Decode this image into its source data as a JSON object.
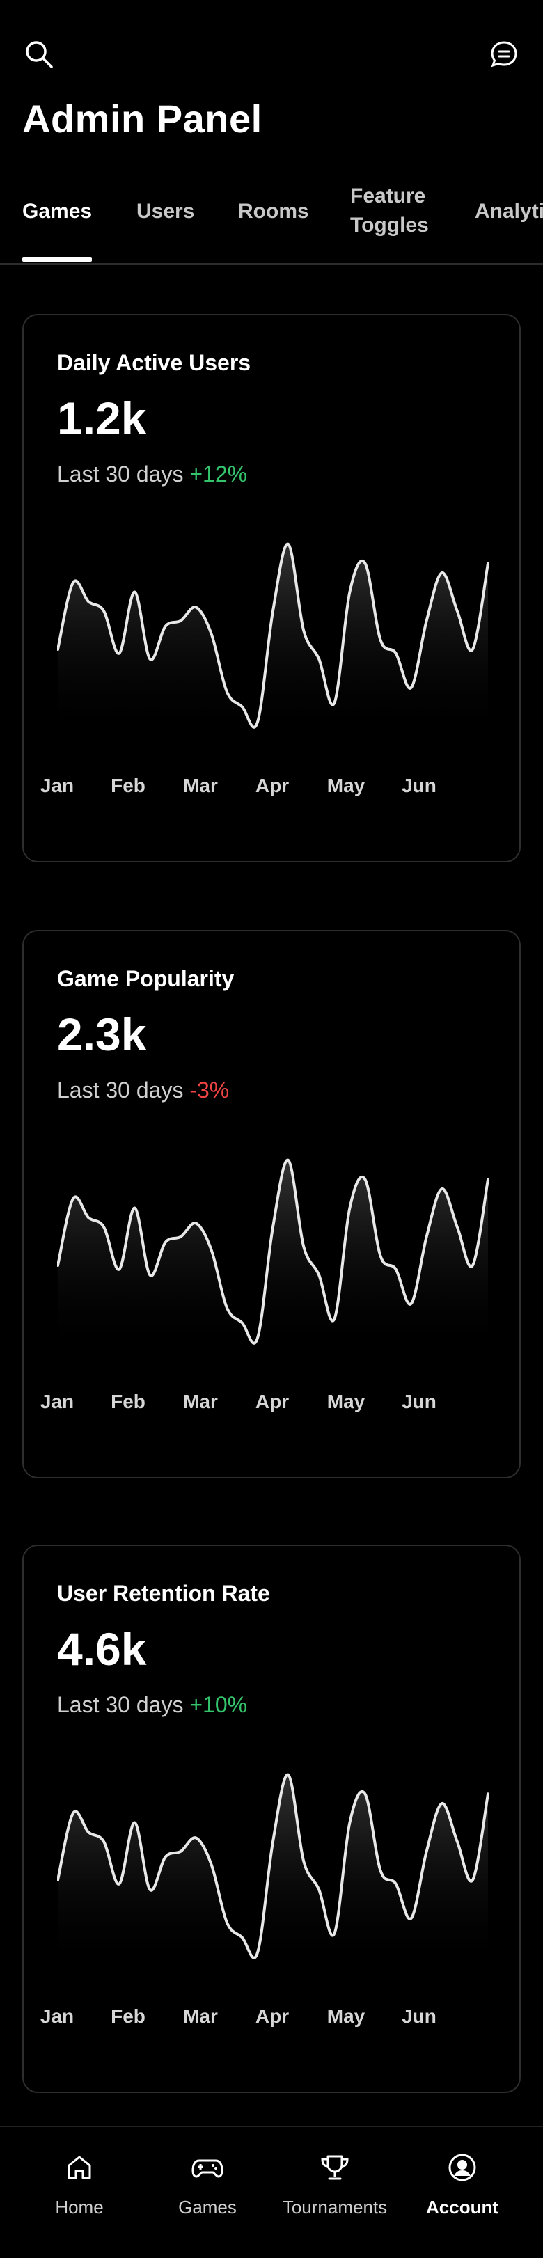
{
  "header": {
    "title": "Admin Panel",
    "search_icon": "search-icon",
    "chat_icon": "chat-icon"
  },
  "tabs": [
    {
      "label": "Games",
      "active": true
    },
    {
      "label": "Users",
      "active": false
    },
    {
      "label": "Rooms",
      "active": false
    },
    {
      "label": "Feature Toggles",
      "active": false
    },
    {
      "label": "Analytics",
      "active": false
    }
  ],
  "cards": [
    {
      "title": "Daily Active Users",
      "value": "1.2k",
      "period": "Last 30 days",
      "delta": "+12%",
      "delta_color": "#34c46b"
    },
    {
      "title": "Game Popularity",
      "value": "2.3k",
      "period": "Last 30 days",
      "delta": "-3%",
      "delta_color": "#ef4444"
    },
    {
      "title": "User Retention Rate",
      "value": "4.6k",
      "period": "Last 30 days",
      "delta": "+10%",
      "delta_color": "#34c46b"
    }
  ],
  "chart_data": [
    {
      "type": "area",
      "title": "Daily Active Users",
      "categories": [
        "Jan",
        "Feb",
        "Mar",
        "Apr",
        "May",
        "Jun"
      ],
      "x": [
        0,
        0.2,
        0.4,
        0.6,
        0.8,
        1.0,
        1.2,
        1.4,
        1.6,
        1.8,
        2.0,
        2.2,
        2.4,
        2.6,
        2.8,
        3.0,
        3.2,
        3.4,
        3.6,
        3.8,
        4.0,
        4.2,
        4.4,
        4.6,
        4.8,
        5.0,
        5.2,
        5.4,
        5.6
      ],
      "values": [
        40,
        75,
        65,
        60,
        38,
        70,
        35,
        52,
        55,
        62,
        48,
        18,
        10,
        2,
        60,
        95,
        50,
        35,
        12,
        70,
        85,
        45,
        38,
        20,
        55,
        80,
        60,
        40,
        85
      ],
      "grid": false
    },
    {
      "type": "area",
      "title": "Game Popularity",
      "categories": [
        "Jan",
        "Feb",
        "Mar",
        "Apr",
        "May",
        "Jun"
      ],
      "x": [
        0,
        0.2,
        0.4,
        0.6,
        0.8,
        1.0,
        1.2,
        1.4,
        1.6,
        1.8,
        2.0,
        2.2,
        2.4,
        2.6,
        2.8,
        3.0,
        3.2,
        3.4,
        3.6,
        3.8,
        4.0,
        4.2,
        4.4,
        4.6,
        4.8,
        5.0,
        5.2,
        5.4,
        5.6
      ],
      "values": [
        40,
        75,
        65,
        60,
        38,
        70,
        35,
        52,
        55,
        62,
        48,
        18,
        10,
        2,
        60,
        95,
        50,
        35,
        12,
        70,
        85,
        45,
        38,
        20,
        55,
        80,
        60,
        40,
        85
      ],
      "grid": false
    },
    {
      "type": "area",
      "title": "User Retention Rate",
      "categories": [
        "Jan",
        "Feb",
        "Mar",
        "Apr",
        "May",
        "Jun"
      ],
      "x": [
        0,
        0.2,
        0.4,
        0.6,
        0.8,
        1.0,
        1.2,
        1.4,
        1.6,
        1.8,
        2.0,
        2.2,
        2.4,
        2.6,
        2.8,
        3.0,
        3.2,
        3.4,
        3.6,
        3.8,
        4.0,
        4.2,
        4.4,
        4.6,
        4.8,
        5.0,
        5.2,
        5.4,
        5.6
      ],
      "values": [
        40,
        75,
        65,
        60,
        38,
        70,
        35,
        52,
        55,
        62,
        48,
        18,
        10,
        2,
        60,
        95,
        50,
        35,
        12,
        70,
        85,
        45,
        38,
        20,
        55,
        80,
        60,
        40,
        85
      ],
      "grid": false
    }
  ],
  "bottom_nav": [
    {
      "label": "Home",
      "icon": "home-icon",
      "active": false
    },
    {
      "label": "Games",
      "icon": "gamepad-icon",
      "active": false
    },
    {
      "label": "Tournaments",
      "icon": "trophy-icon",
      "active": false
    },
    {
      "label": "Account",
      "icon": "account-icon",
      "active": true
    }
  ]
}
